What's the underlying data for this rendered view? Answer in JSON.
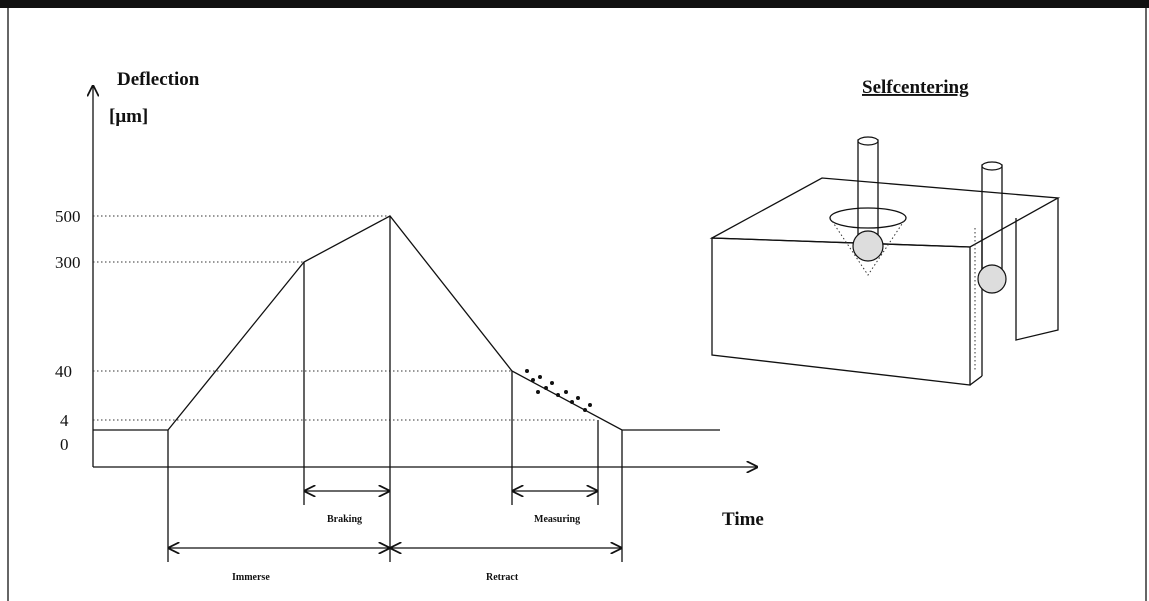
{
  "diagram": {
    "y_axis_label": "Deflection",
    "y_axis_unit": "[μm]",
    "y_levels": [
      "500",
      "300",
      "40",
      "4",
      "0"
    ],
    "x_axis_label": "Time",
    "phases": {
      "braking": "Braking",
      "measuring": "Measuring",
      "immerse": "Immerse",
      "retract": "Retract"
    },
    "illustration_title": "Selfcentering"
  }
}
